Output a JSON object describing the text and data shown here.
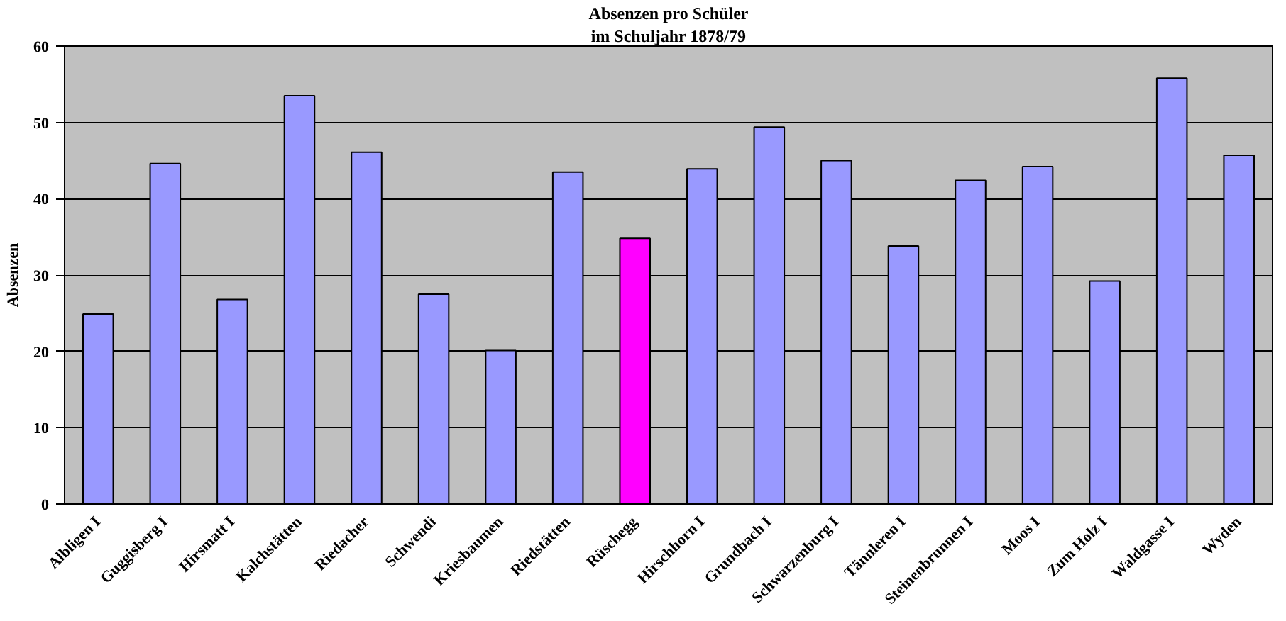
{
  "chart_data": {
    "type": "bar",
    "title": "Absenzen pro Schüler",
    "subtitle": "im Schuljahr 1878/79",
    "ylabel": "Absenzen",
    "categories": [
      "Albligen I",
      "Guggisberg I",
      "Hirsmatt I",
      "Kalchstätten",
      "Riedacher",
      "Schwendi",
      "Kriesbaumen",
      "Riedstätten",
      "Rüschegg",
      "Hirschhorn I",
      "Grundbach I",
      "Schwarzenburg I",
      "Tännleren I",
      "Steinenbrunnen I",
      "Moos I",
      "Zum Holz I",
      "Waldgasse I",
      "Wyden"
    ],
    "values": [
      24.9,
      44.6,
      26.8,
      53.5,
      46.1,
      27.5,
      20.1,
      43.5,
      34.8,
      43.9,
      49.4,
      45.0,
      33.8,
      42.4,
      44.2,
      29.2,
      55.8,
      45.7
    ],
    "colors": [
      "#9999ff",
      "#9999ff",
      "#9999ff",
      "#9999ff",
      "#9999ff",
      "#9999ff",
      "#9999ff",
      "#9999ff",
      "#ff00ff",
      "#9999ff",
      "#9999ff",
      "#9999ff",
      "#9999ff",
      "#9999ff",
      "#9999ff",
      "#9999ff",
      "#9999ff",
      "#9999ff"
    ],
    "ylim": [
      0,
      60
    ],
    "yticks": [
      0,
      10,
      20,
      30,
      40,
      50,
      60
    ],
    "grid": "y"
  }
}
